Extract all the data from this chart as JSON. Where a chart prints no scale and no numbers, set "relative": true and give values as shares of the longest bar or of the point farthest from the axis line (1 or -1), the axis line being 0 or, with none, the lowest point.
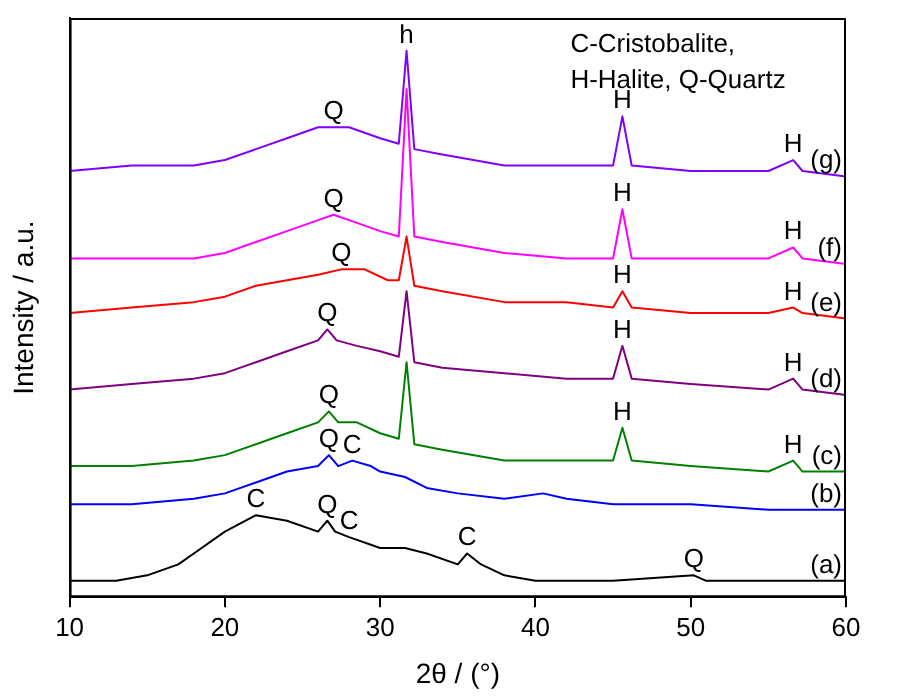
{
  "chart_data": {
    "type": "line",
    "relative": true,
    "xlabel": "2θ / (°)",
    "ylabel": "Intensity / a.u.",
    "xlim": [
      10,
      60
    ],
    "xticks": [
      10,
      20,
      30,
      40,
      50,
      60
    ],
    "grid": false,
    "legend": false,
    "marker": "none",
    "series": [
      {
        "name": "(g)",
        "color": "#8000ff",
        "x": [
          10,
          14,
          18,
          20,
          22,
          24,
          26,
          27,
          28,
          30,
          31.2,
          31.7,
          32.2,
          34,
          38,
          42,
          45,
          45.6,
          46.2,
          50,
          55,
          56.6,
          57.2,
          60
        ],
        "values": [
          0.78,
          0.79,
          0.79,
          0.8,
          0.82,
          0.84,
          0.86,
          0.86,
          0.86,
          0.84,
          0.83,
          1,
          0.82,
          0.81,
          0.79,
          0.79,
          0.79,
          0.88,
          0.79,
          0.78,
          0.78,
          0.8,
          0.78,
          0.77
        ]
      },
      {
        "name": "(f)",
        "color": "#ff00ff",
        "x": [
          10,
          14,
          18,
          20,
          22,
          24,
          26,
          27,
          28,
          30,
          31.2,
          31.7,
          32.2,
          34,
          38,
          42,
          45,
          45.6,
          46.2,
          50,
          55,
          56.6,
          57.2,
          60
        ],
        "values": [
          0.62,
          0.62,
          0.62,
          0.63,
          0.65,
          0.67,
          0.69,
          0.7,
          0.69,
          0.67,
          0.66,
          0.93,
          0.66,
          0.65,
          0.63,
          0.62,
          0.62,
          0.71,
          0.62,
          0.62,
          0.62,
          0.64,
          0.62,
          0.61
        ]
      },
      {
        "name": "(e)",
        "color": "#ff0000",
        "x": [
          10,
          14,
          18,
          20,
          22,
          24,
          26,
          27.5,
          29,
          30.5,
          31.2,
          31.7,
          32.2,
          34,
          38,
          42,
          45,
          45.6,
          46.2,
          50,
          55,
          56.6,
          57.2,
          60
        ],
        "values": [
          0.52,
          0.53,
          0.54,
          0.55,
          0.57,
          0.58,
          0.59,
          0.6,
          0.6,
          0.58,
          0.58,
          0.66,
          0.57,
          0.56,
          0.54,
          0.54,
          0.53,
          0.56,
          0.53,
          0.52,
          0.52,
          0.53,
          0.52,
          0.51
        ]
      },
      {
        "name": "(d)",
        "color": "#800080",
        "x": [
          10,
          14,
          18,
          20,
          22,
          24,
          26,
          26.6,
          27.2,
          28.5,
          30,
          31.2,
          31.7,
          32.2,
          34,
          38,
          42,
          45,
          45.6,
          46.2,
          50,
          55,
          56.6,
          57.2,
          60
        ],
        "values": [
          0.38,
          0.39,
          0.4,
          0.41,
          0.43,
          0.45,
          0.47,
          0.49,
          0.47,
          0.46,
          0.45,
          0.44,
          0.56,
          0.43,
          0.42,
          0.41,
          0.4,
          0.4,
          0.46,
          0.4,
          0.39,
          0.38,
          0.4,
          0.38,
          0.37
        ]
      },
      {
        "name": "(c)",
        "color": "#008000",
        "x": [
          10,
          14,
          18,
          20,
          22,
          24,
          26,
          26.7,
          27.3,
          28.5,
          30,
          31.2,
          31.7,
          32.2,
          34,
          38,
          42,
          45,
          45.6,
          46.2,
          50,
          55,
          56.6,
          57.2,
          60
        ],
        "values": [
          0.24,
          0.24,
          0.25,
          0.26,
          0.28,
          0.3,
          0.32,
          0.34,
          0.32,
          0.32,
          0.3,
          0.29,
          0.43,
          0.28,
          0.27,
          0.25,
          0.25,
          0.25,
          0.31,
          0.25,
          0.24,
          0.23,
          0.25,
          0.23,
          0.23
        ]
      },
      {
        "name": "(b)",
        "color": "#0000ff",
        "x": [
          10,
          14,
          18,
          20,
          22,
          24,
          26,
          26.7,
          27.3,
          28.2,
          29.4,
          30,
          31.6,
          33,
          35,
          38,
          40.5,
          42,
          45,
          50,
          55,
          60
        ],
        "values": [
          0.17,
          0.17,
          0.18,
          0.19,
          0.21,
          0.23,
          0.24,
          0.26,
          0.24,
          0.25,
          0.24,
          0.23,
          0.22,
          0.2,
          0.19,
          0.18,
          0.19,
          0.18,
          0.17,
          0.17,
          0.16,
          0.16
        ]
      },
      {
        "name": "(a)",
        "color": "#000000",
        "x": [
          10,
          13,
          15,
          17,
          18,
          20,
          22,
          24,
          26,
          26.6,
          27.1,
          28,
          30,
          31.6,
          33,
          35,
          35.6,
          36.5,
          38,
          40,
          45,
          50.2,
          51,
          55,
          60
        ],
        "values": [
          0.03,
          0.03,
          0.04,
          0.06,
          0.08,
          0.12,
          0.15,
          0.14,
          0.12,
          0.14,
          0.12,
          0.11,
          0.09,
          0.09,
          0.08,
          0.06,
          0.08,
          0.06,
          0.04,
          0.03,
          0.03,
          0.04,
          0.03,
          0.03,
          0.03
        ]
      }
    ],
    "annotations": [
      "C-Cristobalite,",
      "H-Halite, Q-Quartz",
      {
        "text": "Q",
        "x": 27,
        "y": 0.86
      },
      {
        "text": "h",
        "x": 31.7,
        "y": 1
      },
      {
        "text": "H",
        "x": 45.6,
        "y": 0.88
      },
      {
        "text": "H",
        "x": 56.6,
        "y": 0.8
      },
      {
        "text": "Q",
        "x": 27,
        "y": 0.7
      },
      {
        "text": "H",
        "x": 45.6,
        "y": 0.71
      },
      {
        "text": "H",
        "x": 56.6,
        "y": 0.64
      },
      {
        "text": "Q",
        "x": 27.5,
        "y": 0.6
      },
      {
        "text": "H",
        "x": 45.6,
        "y": 0.56
      },
      {
        "text": "H",
        "x": 56.6,
        "y": 0.53
      },
      {
        "text": "Q",
        "x": 26.6,
        "y": 0.49
      },
      {
        "text": "H",
        "x": 45.6,
        "y": 0.46
      },
      {
        "text": "H",
        "x": 56.6,
        "y": 0.4
      },
      {
        "text": "Q",
        "x": 26.7,
        "y": 0.34
      },
      {
        "text": "H",
        "x": 45.6,
        "y": 0.31
      },
      {
        "text": "H",
        "x": 56.6,
        "y": 0.25
      },
      {
        "text": "Q",
        "x": 26.7,
        "y": 0.26
      },
      {
        "text": "C",
        "x": 28.2,
        "y": 0.25
      },
      {
        "text": "C",
        "x": 22,
        "y": 0.15
      },
      {
        "text": "Q",
        "x": 26.6,
        "y": 0.14
      },
      {
        "text": "C",
        "x": 28,
        "y": 0.11
      },
      {
        "text": "C",
        "x": 35.6,
        "y": 0.08
      },
      {
        "text": "Q",
        "x": 50.2,
        "y": 0.04
      }
    ]
  }
}
